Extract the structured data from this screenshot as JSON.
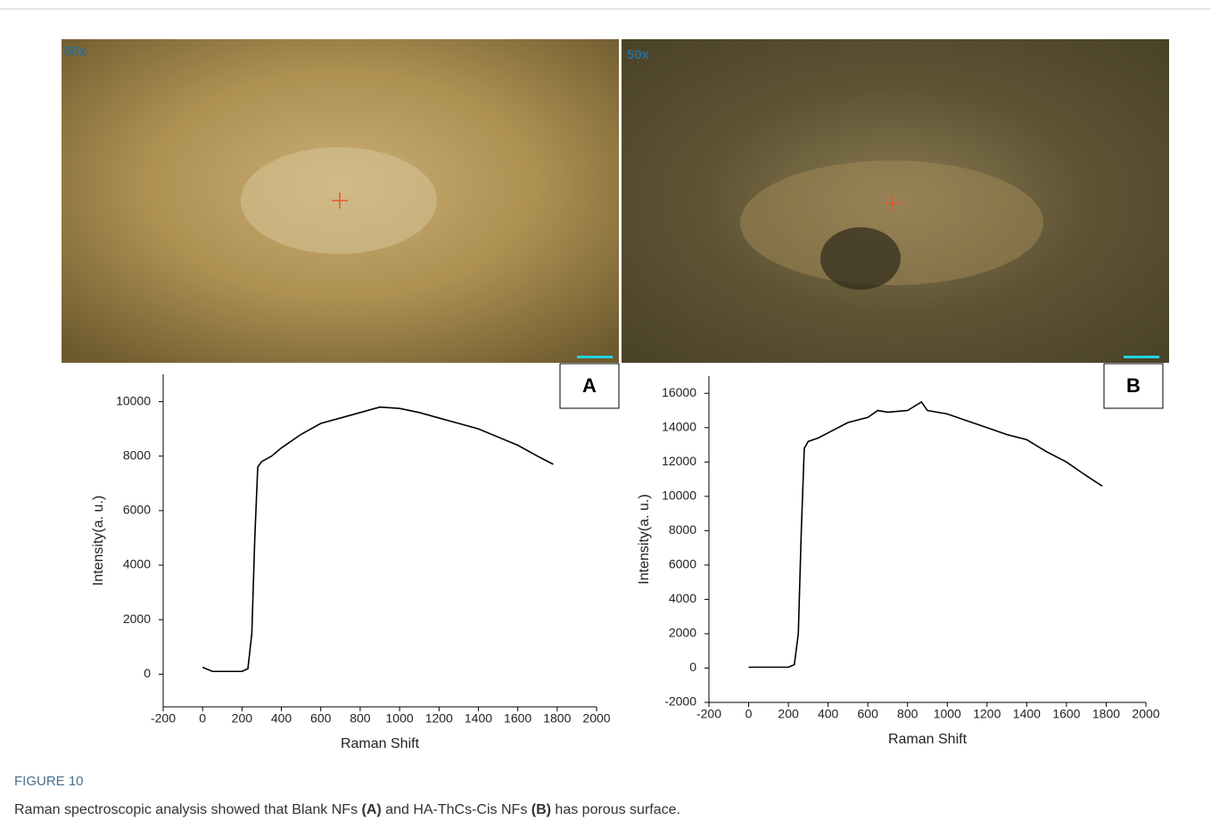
{
  "figure": {
    "label": "FIGURE 10",
    "caption": [
      "Raman spectroscopic analysis showed that Blank NFs ",
      "(A)",
      " and HA-ThCs-Cis NFs ",
      "(B)",
      " has porous surface."
    ]
  },
  "panels": [
    {
      "magnification": "50x",
      "label": "A"
    },
    {
      "magnification": "50x",
      "label": "B"
    }
  ],
  "chart_data": [
    {
      "type": "line",
      "xlabel": "Raman Shift",
      "ylabel": "Intensity(a. u.)",
      "x": [
        0,
        50,
        100,
        150,
        200,
        230,
        250,
        265,
        280,
        300,
        350,
        400,
        500,
        600,
        700,
        800,
        900,
        1000,
        1100,
        1200,
        1300,
        1400,
        1500,
        1600,
        1700,
        1780
      ],
      "series": [
        {
          "color": "#000000",
          "values": [
            250,
            100,
            100,
            100,
            100,
            200,
            1500,
            5000,
            7600,
            7800,
            8000,
            8300,
            8800,
            9200,
            9400,
            9600,
            9800,
            9750,
            9600,
            9400,
            9200,
            9000,
            8700,
            8400,
            8000,
            7700
          ]
        }
      ],
      "xlim": [
        -200,
        2000
      ],
      "ylim": [
        -1200,
        11000
      ],
      "xticks": [
        -200,
        0,
        200,
        400,
        600,
        800,
        1000,
        1200,
        1400,
        1600,
        1800,
        2000
      ],
      "yticks": [
        0,
        2000,
        4000,
        6000,
        8000,
        10000
      ]
    },
    {
      "type": "line",
      "xlabel": "Raman Shift",
      "ylabel": "Intensity(a. u.)",
      "x": [
        0,
        50,
        100,
        150,
        200,
        230,
        250,
        265,
        280,
        300,
        350,
        400,
        500,
        600,
        650,
        700,
        800,
        870,
        900,
        1000,
        1100,
        1200,
        1300,
        1400,
        1500,
        1600,
        1700,
        1780
      ],
      "series": [
        {
          "color": "#000000",
          "values": [
            50,
            50,
            50,
            50,
            50,
            200,
            2000,
            8000,
            12800,
            13200,
            13400,
            13700,
            14300,
            14600,
            15000,
            14900,
            15000,
            15500,
            15000,
            14800,
            14400,
            14000,
            13600,
            13300,
            12600,
            12000,
            11200,
            10600
          ]
        }
      ],
      "xlim": [
        -200,
        2000
      ],
      "ylim": [
        -2000,
        17000
      ],
      "xticks": [
        -200,
        0,
        200,
        400,
        600,
        800,
        1000,
        1200,
        1400,
        1600,
        1800,
        2000
      ],
      "yticks": [
        -2000,
        0,
        2000,
        4000,
        6000,
        8000,
        10000,
        12000,
        14000,
        16000
      ]
    }
  ]
}
